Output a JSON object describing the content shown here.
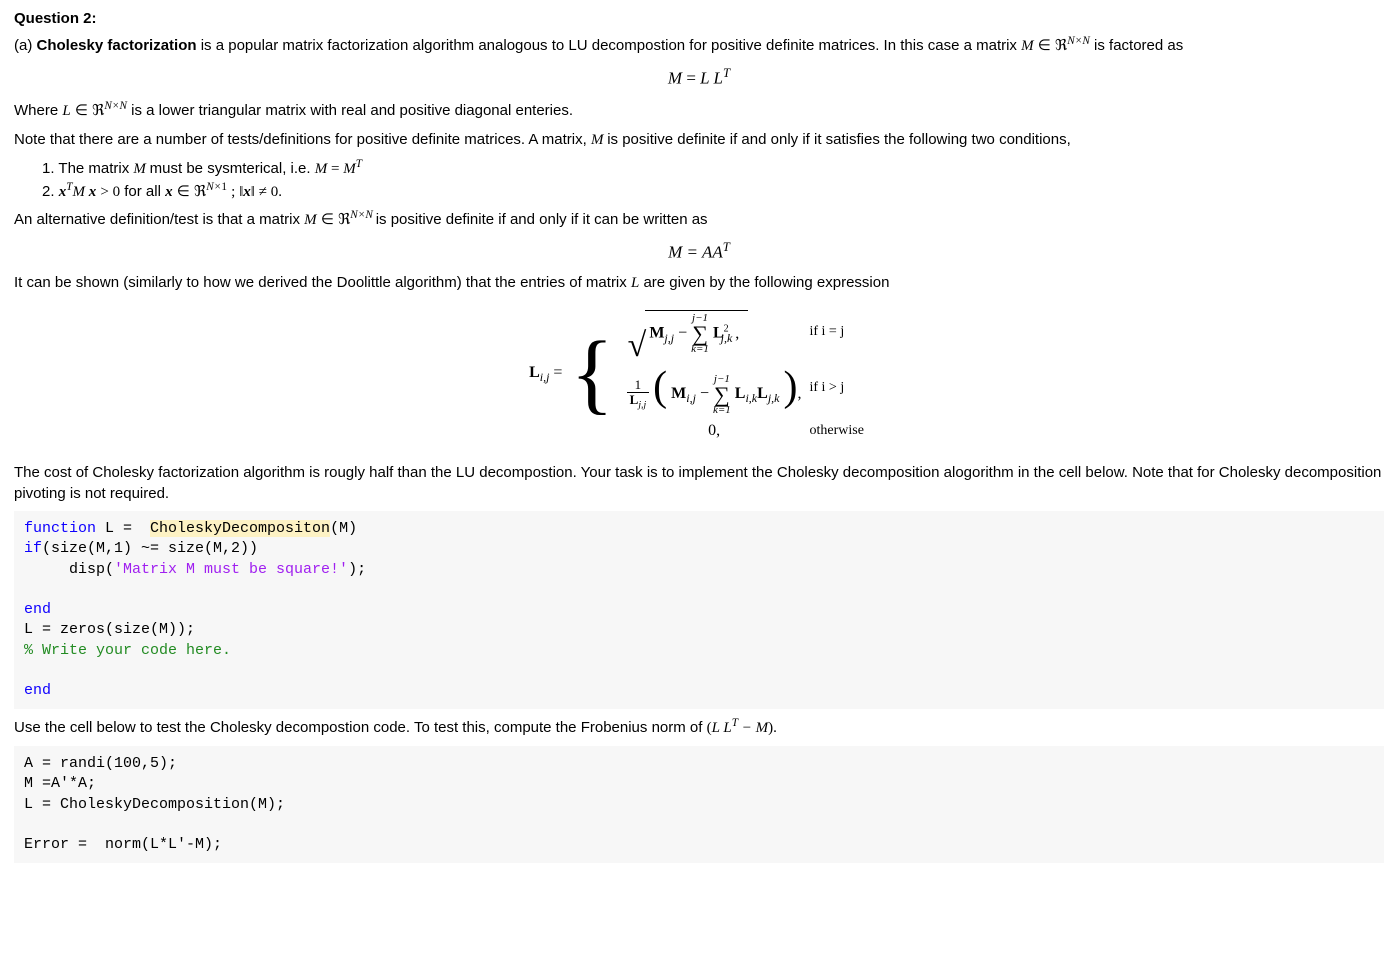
{
  "title": "Question 2:",
  "intro_a_prefix": "(a) ",
  "intro_a_bold": "Cholesky factorization",
  "intro_a_rest": " is a popular matrix factorization algorithm analogous to LU decompostion for positive definite matrices. In this case a matrix ",
  "intro_a_tail": " is factored as",
  "eq1_lhs": "M",
  "eq1_mid": " = ",
  "eq1_rhs": "L L",
  "eq1_sup": "T",
  "where_text_a": "Where ",
  "where_text_b": " is a lower triangular matrix with real and positive diagonal enteries.",
  "note_text": "Note that there are a number of tests/definitions for positive definite matrices. A matrix, ",
  "note_text_b": " is positive definite if and only if it satisfies the following two conditions,",
  "cond1_a": "1. The matrix ",
  "cond1_b": " must be sysmterical, i.e. ",
  "cond2_a": "2. ",
  "cond2_b": " for  all  ",
  "alt_def_a": "An alternative definition/test is that a matrix ",
  "alt_def_b": " is positive definite if and only if it can be written as",
  "eq2": "M = AA",
  "eq2_sup": "T",
  "derive_text_a": "It can be shown (similarly to how we derived the Doolittle algorithm) that the entries of matrix ",
  "derive_text_b": " are given by the following expression",
  "cost_text": "The cost of Cholesky factorization algorithm is rougly half than the LU decompostion. Your task is to implement the Cholesky decomposition alogorithm in the cell below. Note that for Cholesky decomposition pivoting is not required.",
  "test_text_a": "Use the cell below to test the Cholesky decompostion code. To test this, compute the Frobenius norm of  ",
  "code1": {
    "l1a": "function",
    "l1b": " L =  ",
    "l1c": "CholeskyDecompositon",
    "l1d": "(M)",
    "l2a": "if",
    "l2b": "(size(M,1) ~= size(M,2))",
    "l3a": "     disp(",
    "l3b": "'Matrix M must be square!'",
    "l3c": ");",
    "l4": "",
    "l5": "end",
    "l6": "L = zeros(size(M));",
    "l7": "% Write your code here.",
    "l8": "",
    "l9": "end"
  },
  "code2": {
    "l1": "A = randi(100,5);",
    "l2": "M =A'*A;",
    "l3": "L = CholeskyDecomposition(M);",
    "l4": "",
    "l5": "Error =  norm(L*L'-M);"
  },
  "formula": {
    "lhs": "L",
    "lhs_sub": "i,j",
    "case1_cond": "if i = j",
    "case2_cond": "if i > j",
    "case3_val": "0,",
    "case3_cond": "otherwise",
    "jm1": "j−1",
    "keq1": "k=1"
  },
  "colors": {
    "code_bg": "#f7f7f7",
    "keyword": "#0e00ff",
    "string": "#a020f0",
    "comment": "#228B22",
    "highlight": "#fdf2c4"
  }
}
